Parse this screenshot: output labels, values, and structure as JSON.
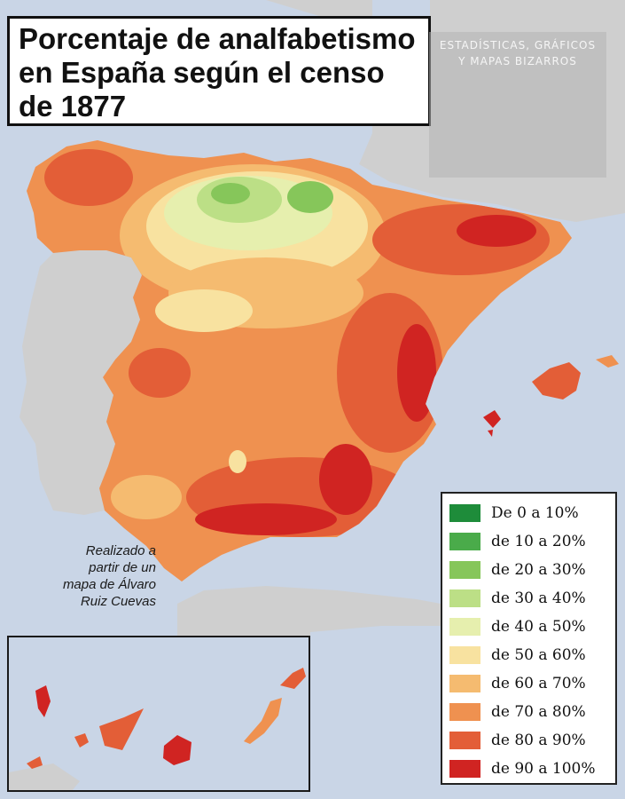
{
  "title": {
    "lines": [
      "Porcentaje de analfabetismo",
      "en España según el censo",
      "de 1877"
    ]
  },
  "watermark": {
    "lines": [
      "ESTADÍSTICAS, GRÁFICOS",
      "Y MAPAS BIZARROS"
    ]
  },
  "credit": {
    "lines": [
      "Realizado a",
      "partir de un",
      "mapa de Álvaro",
      "Ruiz Cuevas"
    ]
  },
  "colors": {
    "sea": "#c9d5e6",
    "foreign_land": "#cfcfcf",
    "border": "#5b3a2a"
  },
  "legend": {
    "items": [
      {
        "label": "De 0 a 10%",
        "color": "#1e8c3a"
      },
      {
        "label": "de 10 a 20%",
        "color": "#4aab4a"
      },
      {
        "label": "de 20 a 30%",
        "color": "#86c65a"
      },
      {
        "label": "de 30 a 40%",
        "color": "#bcdf86"
      },
      {
        "label": "de 40 a 50%",
        "color": "#e6efae"
      },
      {
        "label": "de 50 a 60%",
        "color": "#f8e2a0"
      },
      {
        "label": "de 60 a 70%",
        "color": "#f5bb70"
      },
      {
        "label": "de 70 a 80%",
        "color": "#ef9150"
      },
      {
        "label": "de 80 a 90%",
        "color": "#e35e37"
      },
      {
        "label": "de 90 a 100%",
        "color": "#d02422"
      }
    ]
  }
}
